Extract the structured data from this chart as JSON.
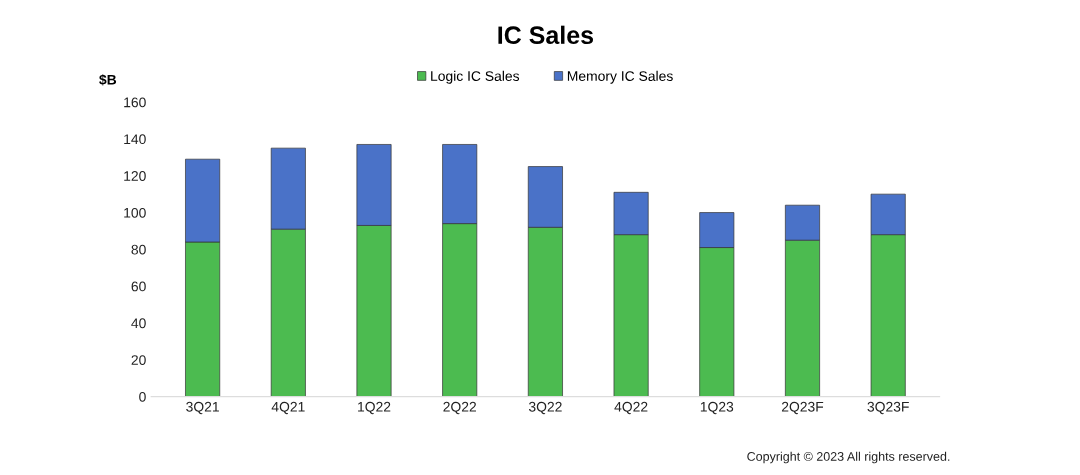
{
  "chart_data": {
    "type": "bar",
    "title": "IC Sales",
    "ylabel": "$B",
    "categories": [
      "3Q21",
      "4Q21",
      "1Q22",
      "2Q22",
      "3Q22",
      "4Q22",
      "1Q23",
      "2Q23F",
      "3Q23F"
    ],
    "stacked": true,
    "series": [
      {
        "name": "Logic IC Sales",
        "color": "#4cbb50",
        "values": [
          84,
          91,
          93,
          94,
          92,
          88,
          81,
          85,
          88
        ]
      },
      {
        "name": "Memory IC Sales",
        "color": "#4a72c8",
        "values": [
          45,
          44,
          44,
          43,
          33,
          23,
          19,
          19,
          22
        ]
      }
    ],
    "ylim": [
      0,
      160
    ],
    "yticks": [
      0,
      20,
      40,
      60,
      80,
      100,
      120,
      140,
      160
    ],
    "grid": false,
    "legend": "top",
    "annotations": [
      "Copyright © 2023 All rights reserved."
    ]
  }
}
